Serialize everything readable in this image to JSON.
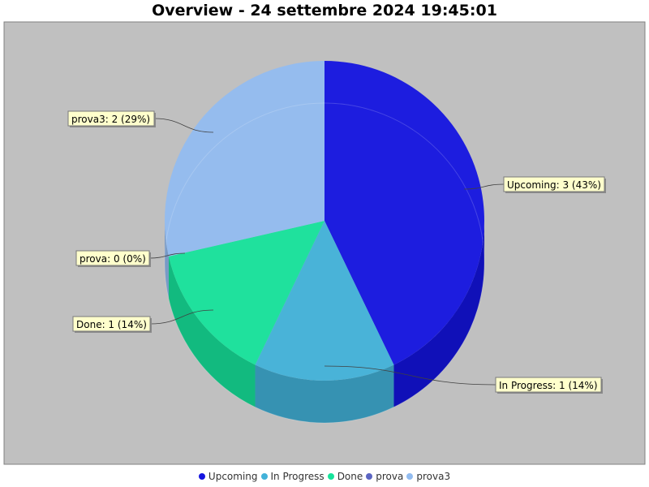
{
  "chart_data": {
    "type": "pie",
    "title": "Overview - 24 settembre 2024 19:45:01",
    "legend_position": "bottom",
    "plot_background": "#c0c0c0",
    "label_background": "#ffffcc",
    "slices": [
      {
        "name": "Upcoming",
        "value": 3,
        "percent": 43,
        "color": "#1414e0",
        "label": "Upcoming: 3 (43%)"
      },
      {
        "name": "In Progress",
        "value": 1,
        "percent": 14,
        "color": "#42b2d9",
        "label": "In Progress: 1 (14%)"
      },
      {
        "name": "Done",
        "value": 1,
        "percent": 14,
        "color": "#16e39b",
        "label": "Done: 1 (14%)"
      },
      {
        "name": "prova",
        "value": 0,
        "percent": 0,
        "color": "#5b65c2",
        "label": "prova: 0 (0%)"
      },
      {
        "name": "prova3",
        "value": 2,
        "percent": 29,
        "color": "#92bcf0",
        "label": "prova3: 2 (29%)"
      }
    ]
  }
}
